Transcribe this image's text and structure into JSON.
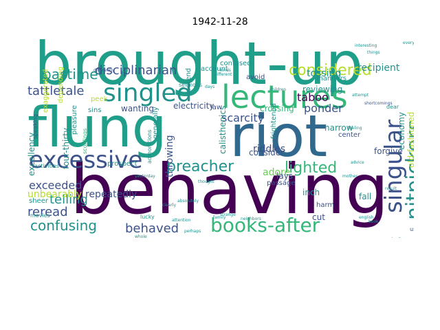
{
  "title": "1942-11-28",
  "palette": {
    "dark_purple": "#440154",
    "indigo": "#3b528b",
    "blue": "#31688e",
    "teal": "#21918c",
    "green_teal": "#1f9e89",
    "green": "#35b779",
    "light_green": "#6ece58",
    "lime": "#b5de2b",
    "yellow": "#fde725"
  },
  "words": [
    {
      "text": "brought-up",
      "color": "green_teal"
    },
    {
      "text": "behaving",
      "color": "dark_purple"
    },
    {
      "text": "riot",
      "color": "blue"
    },
    {
      "text": "flung",
      "color": "green_teal"
    },
    {
      "text": "lectures",
      "color": "green"
    },
    {
      "text": "excessive",
      "color": "indigo"
    },
    {
      "text": "singled",
      "color": "teal"
    },
    {
      "text": "books-after",
      "color": "green"
    },
    {
      "text": "singular",
      "color": "indigo"
    },
    {
      "text": "nitpickers",
      "color": "teal"
    },
    {
      "text": "considered",
      "color": "lime"
    },
    {
      "text": "disciplinarian",
      "color": "indigo"
    },
    {
      "text": "preacher",
      "color": "teal"
    },
    {
      "text": "lighted",
      "color": "green"
    },
    {
      "text": "tattletale",
      "color": "indigo"
    },
    {
      "text": "pastime",
      "color": "teal"
    },
    {
      "text": "confusing",
      "color": "teal"
    },
    {
      "text": "behaved",
      "color": "indigo"
    },
    {
      "text": "scarcity",
      "color": "indigo"
    },
    {
      "text": "repeatedly",
      "color": "indigo"
    },
    {
      "text": "reread",
      "color": "indigo"
    },
    {
      "text": "telling",
      "color": "teal"
    },
    {
      "text": "exceeded",
      "color": "indigo"
    },
    {
      "text": "taboo",
      "color": "dark_purple"
    },
    {
      "text": "ponder",
      "color": "indigo"
    },
    {
      "text": "riddles",
      "color": "indigo"
    },
    {
      "text": "reviewing",
      "color": "teal"
    },
    {
      "text": "tossing",
      "color": "teal"
    },
    {
      "text": "recipient",
      "color": "teal"
    },
    {
      "text": "binocular",
      "color": "indigo"
    },
    {
      "text": "unbearably",
      "color": "lime"
    },
    {
      "text": "adore",
      "color": "light_green"
    },
    {
      "text": "excellency",
      "color": "teal"
    },
    {
      "text": "throwing",
      "color": "indigo"
    },
    {
      "text": "economy",
      "color": "teal"
    },
    {
      "text": "old-fashioned",
      "color": "lime"
    },
    {
      "text": "calisthenics",
      "color": "teal"
    },
    {
      "text": "electricity",
      "color": "indigo"
    },
    {
      "text": "four-thirty",
      "color": "teal"
    },
    {
      "text": "wanting",
      "color": "indigo"
    },
    {
      "text": "forgive",
      "color": "indigo"
    },
    {
      "text": "frightened",
      "color": "teal"
    },
    {
      "text": "crossing",
      "color": "green"
    },
    {
      "text": "consider",
      "color": "indigo"
    },
    {
      "text": "passage",
      "color": "indigo"
    },
    {
      "text": "fall",
      "color": "teal"
    },
    {
      "text": "lays",
      "color": "indigo"
    },
    {
      "text": "inch",
      "color": "teal"
    },
    {
      "text": "harm",
      "color": "indigo"
    },
    {
      "text": "cut",
      "color": "indigo"
    },
    {
      "text": "narrow",
      "color": "teal"
    },
    {
      "text": "center",
      "color": "indigo"
    },
    {
      "text": "law",
      "color": "indigo"
    },
    {
      "text": "generally",
      "color": "teal"
    },
    {
      "text": "sins",
      "color": "teal"
    },
    {
      "text": "sermons",
      "color": "teal"
    },
    {
      "text": "pretend",
      "color": "teal"
    },
    {
      "text": "confused",
      "color": "teal"
    },
    {
      "text": "avoid",
      "color": "indigo"
    },
    {
      "text": "account",
      "color": "teal"
    },
    {
      "text": "manners",
      "color": "teal"
    },
    {
      "text": "peek",
      "color": "lime"
    },
    {
      "text": "exaggerated",
      "color": "lime"
    },
    {
      "text": "depending",
      "color": "lime"
    },
    {
      "text": "pleasure",
      "color": "teal"
    },
    {
      "text": "speaking",
      "color": "indigo"
    },
    {
      "text": "scoldings",
      "color": "green"
    },
    {
      "text": "prospect",
      "color": "teal"
    },
    {
      "text": "admonitions",
      "color": "teal"
    },
    {
      "text": "activities",
      "color": "teal"
    },
    {
      "text": "sheer",
      "color": "teal"
    },
    {
      "text": "movies",
      "color": "teal"
    },
    {
      "text": "lucky",
      "color": "teal"
    },
    {
      "text": "using",
      "color": "indigo"
    },
    {
      "text": "dear",
      "color": "teal"
    },
    {
      "text": "differently",
      "color": "indigo"
    },
    {
      "text": "shortcomings",
      "color": "indigo"
    },
    {
      "text": "attempt",
      "color": "teal"
    },
    {
      "text": "interesting",
      "color": "teal"
    },
    {
      "text": "everything",
      "color": "teal"
    },
    {
      "text": "feeling",
      "color": "teal"
    },
    {
      "text": "children",
      "color": "teal"
    },
    {
      "text": "advice",
      "color": "teal"
    },
    {
      "text": "english",
      "color": "teal"
    },
    {
      "text": "book",
      "color": "teal"
    },
    {
      "text": "result",
      "color": "teal"
    },
    {
      "text": "badly",
      "color": "teal"
    },
    {
      "text": "family",
      "color": "teal"
    },
    {
      "text": "mother",
      "color": "teal"
    },
    {
      "text": "things",
      "color": "teal"
    },
    {
      "text": "thought",
      "color": "teal"
    },
    {
      "text": "yesterday",
      "color": "teal"
    },
    {
      "text": "strange",
      "color": "teal"
    },
    {
      "text": "neighbors",
      "color": "teal"
    },
    {
      "text": "absolutely",
      "color": "teal"
    },
    {
      "text": "attention",
      "color": "teal"
    },
    {
      "text": "clearly",
      "color": "teal"
    },
    {
      "text": "perhaps",
      "color": "teal"
    },
    {
      "text": "different",
      "color": "teal"
    },
    {
      "text": "kinds",
      "color": "teal"
    },
    {
      "text": "days",
      "color": "teal"
    },
    {
      "text": "whole",
      "color": "teal"
    }
  ]
}
